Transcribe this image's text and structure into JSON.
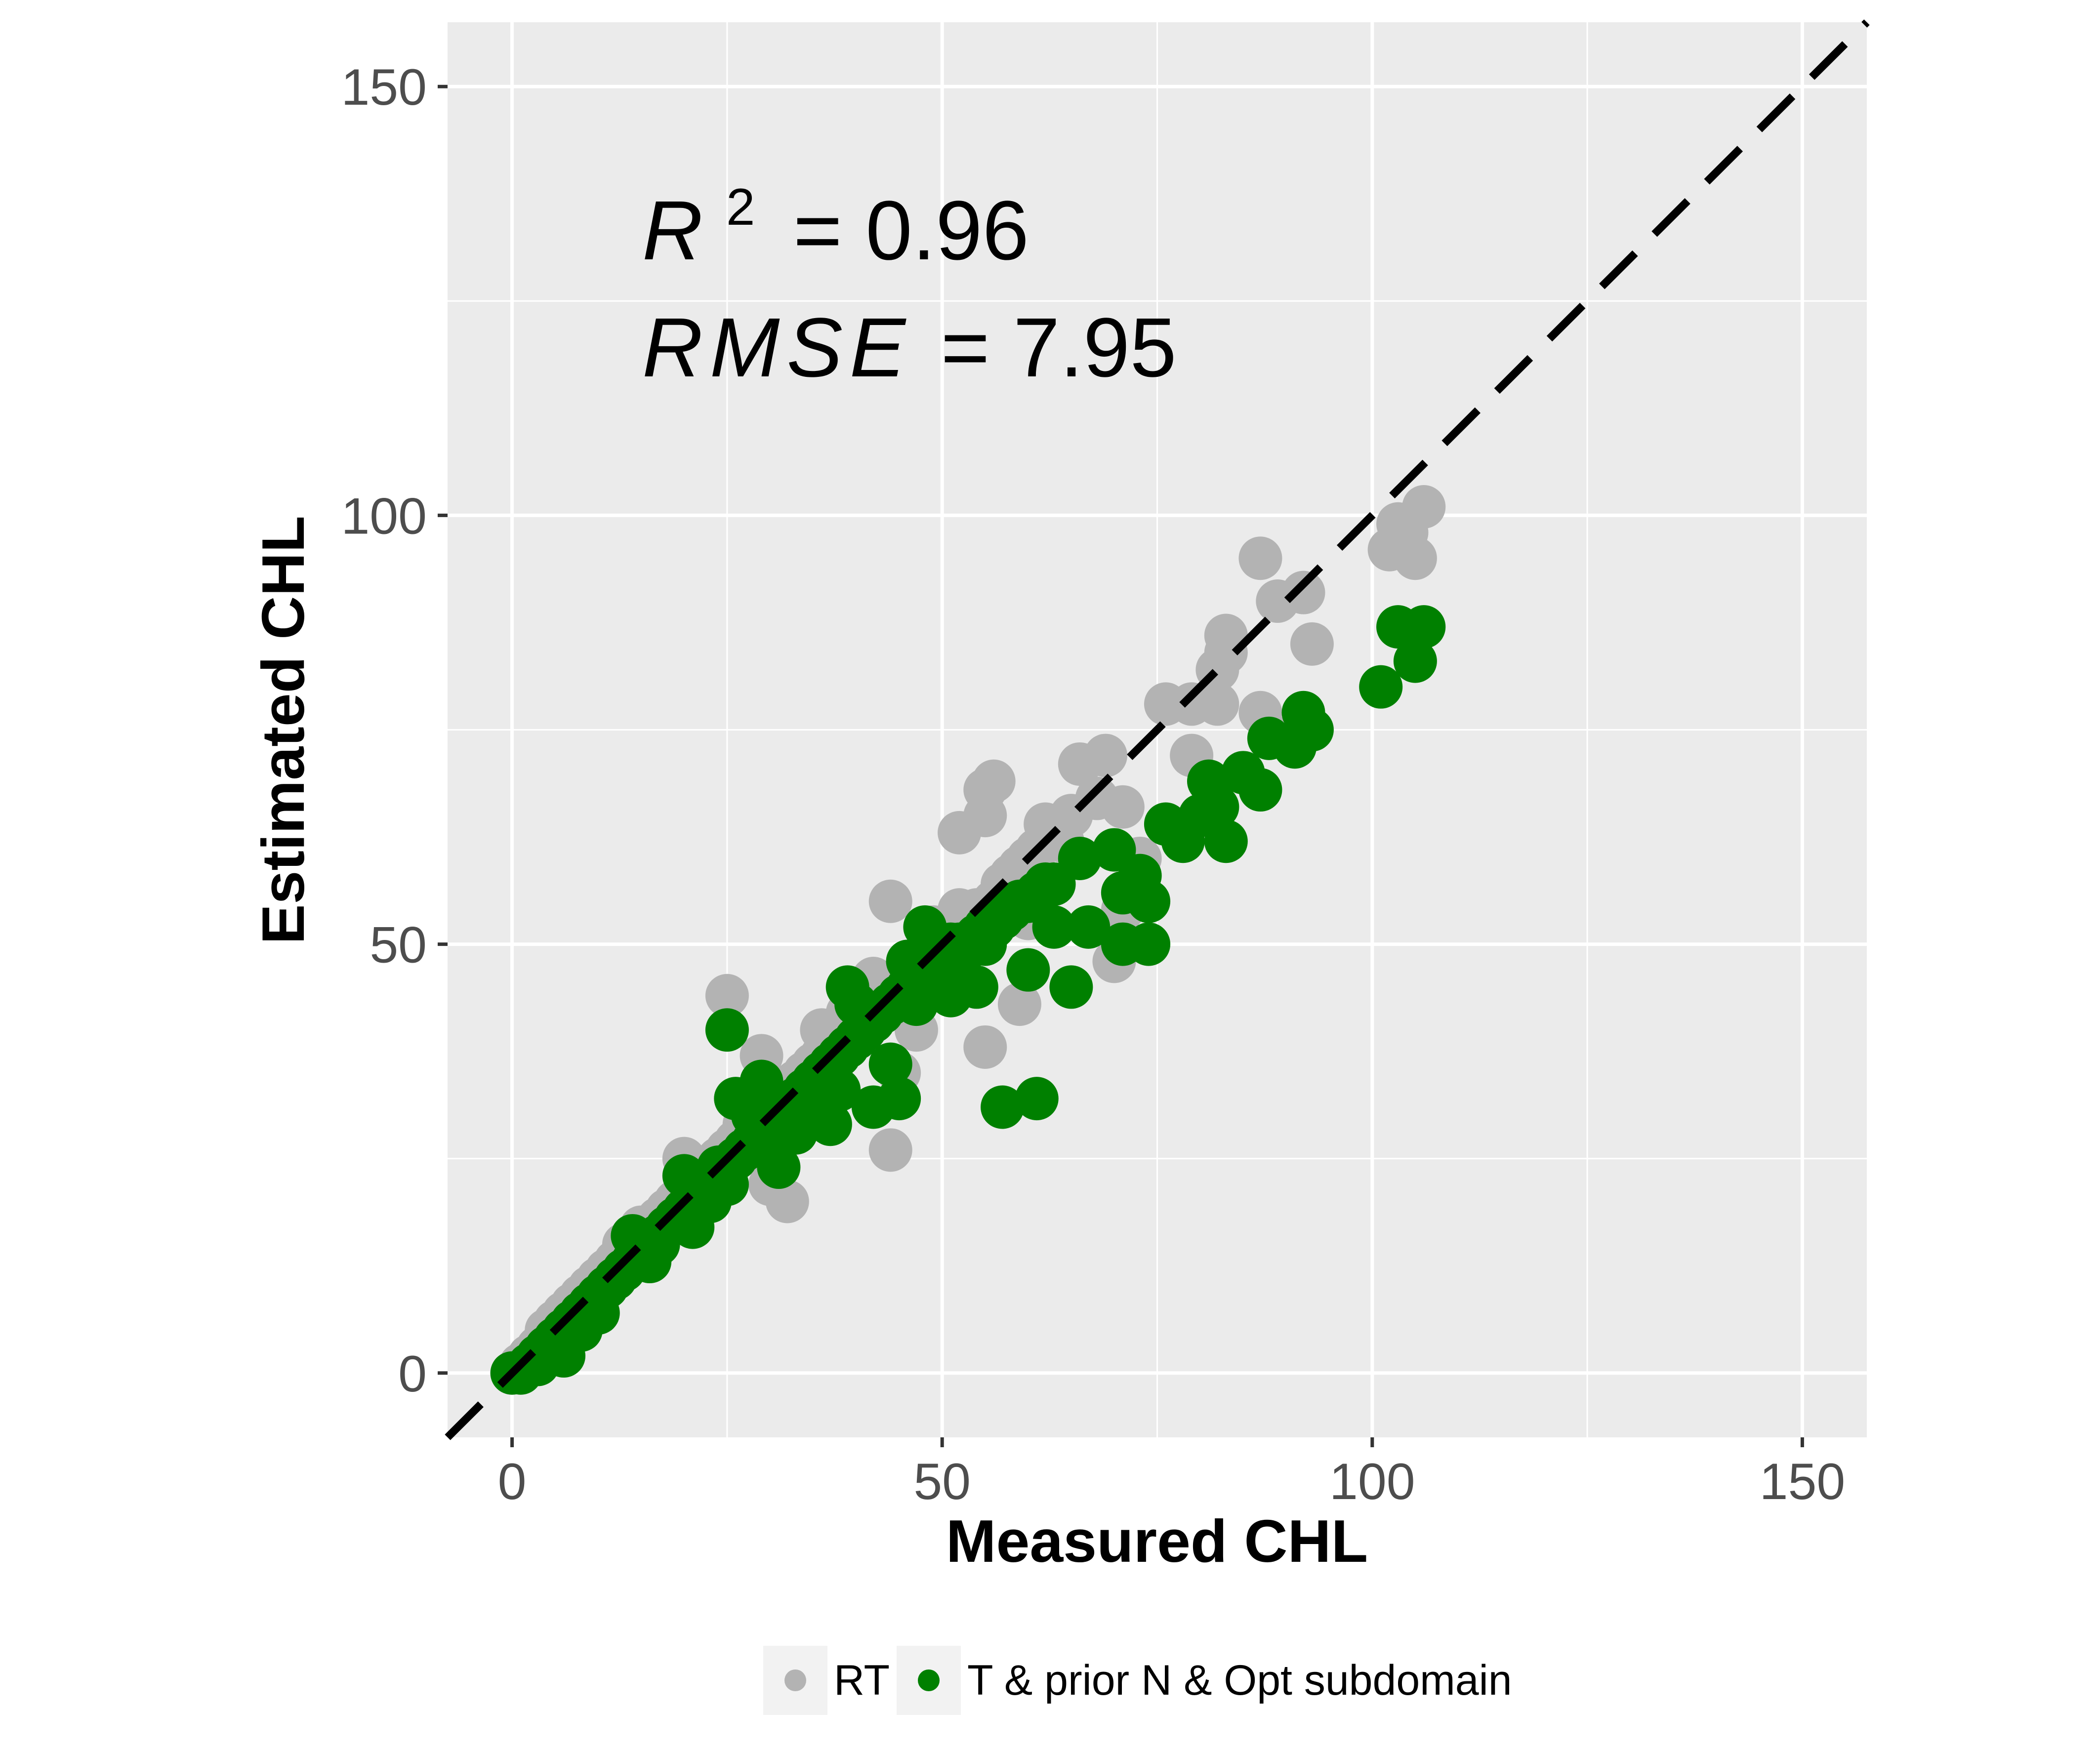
{
  "chart_data": {
    "type": "scatter",
    "title": "",
    "xlabel": "Measured CHL",
    "ylabel": "Estimated CHL",
    "xlim": [
      -7.5,
      157.5
    ],
    "ylim": [
      -7.5,
      157.5
    ],
    "x_ticks": [
      0,
      50,
      100,
      150
    ],
    "y_ticks": [
      0,
      50,
      100,
      150
    ],
    "x_tick_labels": [
      "0",
      "50",
      "100",
      "150"
    ],
    "y_tick_labels": [
      "0",
      "50",
      "100",
      "150"
    ],
    "grid": true,
    "background": "#ebebeb",
    "reference_line": {
      "type": "1:1",
      "style": "dashed",
      "color": "#000000"
    },
    "annotations": {
      "r2_symbol": "R",
      "r2_exponent": "2",
      "r2_value": "= 0.96",
      "rmse_symbol": "RMSE",
      "rmse_value": "= 7.95"
    },
    "legend": {
      "position": "bottom",
      "entries": [
        {
          "label": "RT",
          "color": "#b3b3b3"
        },
        {
          "label": "T & prior N & Opt subdomain",
          "color": "#008000"
        }
      ]
    },
    "series": [
      {
        "name": "RT",
        "color": "#b3b3b3",
        "points": [
          [
            0,
            0
          ],
          [
            1,
            1
          ],
          [
            2,
            2
          ],
          [
            3,
            3
          ],
          [
            4,
            5
          ],
          [
            5,
            6
          ],
          [
            6,
            7
          ],
          [
            7,
            8
          ],
          [
            8,
            9
          ],
          [
            9,
            10
          ],
          [
            10,
            11
          ],
          [
            11,
            12
          ],
          [
            12,
            13
          ],
          [
            13,
            15
          ],
          [
            14,
            16
          ],
          [
            15,
            17
          ],
          [
            16,
            17
          ],
          [
            17,
            18
          ],
          [
            18,
            19
          ],
          [
            19,
            20
          ],
          [
            20,
            21
          ],
          [
            21,
            22
          ],
          [
            22,
            23
          ],
          [
            23,
            24
          ],
          [
            24,
            25
          ],
          [
            25,
            26
          ],
          [
            26,
            27
          ],
          [
            27,
            29
          ],
          [
            28,
            30
          ],
          [
            29,
            31
          ],
          [
            30,
            32
          ],
          [
            31,
            32
          ],
          [
            32,
            33
          ],
          [
            33,
            34
          ],
          [
            34,
            35
          ],
          [
            35,
            36
          ],
          [
            36,
            37
          ],
          [
            37,
            38
          ],
          [
            38,
            40
          ],
          [
            39,
            41
          ],
          [
            40,
            41
          ],
          [
            41,
            42
          ],
          [
            42,
            43
          ],
          [
            43,
            44
          ],
          [
            44,
            45
          ],
          [
            45,
            46
          ],
          [
            46,
            47
          ],
          [
            47,
            48
          ],
          [
            48,
            49
          ],
          [
            49,
            50
          ],
          [
            50,
            51
          ],
          [
            52,
            52
          ],
          [
            53,
            53
          ],
          [
            54,
            54
          ],
          [
            56,
            55
          ],
          [
            57,
            57
          ],
          [
            58,
            58
          ],
          [
            59,
            59
          ],
          [
            60,
            60
          ],
          [
            61,
            61
          ],
          [
            62,
            62
          ],
          [
            63,
            63
          ],
          [
            64,
            64
          ],
          [
            65,
            65
          ],
          [
            20,
            25
          ],
          [
            25,
            44
          ],
          [
            29,
            37
          ],
          [
            30,
            22
          ],
          [
            32,
            20
          ],
          [
            35,
            30
          ],
          [
            36,
            40
          ],
          [
            39,
            42
          ],
          [
            42,
            46
          ],
          [
            44,
            55
          ],
          [
            44,
            26
          ],
          [
            45,
            35
          ],
          [
            47,
            40
          ],
          [
            49,
            52
          ],
          [
            50,
            48
          ],
          [
            52,
            54
          ],
          [
            55,
            65
          ],
          [
            56,
            69
          ],
          [
            55,
            68
          ],
          [
            52,
            63
          ],
          [
            55,
            38
          ],
          [
            59,
            43
          ],
          [
            60,
            53
          ],
          [
            62,
            64
          ],
          [
            64,
            62
          ],
          [
            66,
            71
          ],
          [
            68,
            67
          ],
          [
            69,
            72
          ],
          [
            71,
            66
          ],
          [
            71,
            54
          ],
          [
            73,
            60
          ],
          [
            70,
            48
          ],
          [
            76,
            78
          ],
          [
            79,
            78
          ],
          [
            79,
            72
          ],
          [
            82,
            82
          ],
          [
            83,
            86
          ],
          [
            82,
            78
          ],
          [
            83,
            84
          ],
          [
            87,
            95
          ],
          [
            89,
            90
          ],
          [
            92,
            91
          ],
          [
            93,
            85
          ],
          [
            87,
            77
          ],
          [
            90,
            74
          ],
          [
            102,
            96
          ],
          [
            103,
            99
          ],
          [
            104,
            98
          ],
          [
            105,
            95
          ],
          [
            106,
            101
          ]
        ]
      },
      {
        "name": "T & prior N & Opt subdomain",
        "color": "#008000",
        "points": [
          [
            0,
            0
          ],
          [
            1,
            0
          ],
          [
            2,
            1
          ],
          [
            3,
            2
          ],
          [
            4,
            3
          ],
          [
            5,
            4
          ],
          [
            6,
            5
          ],
          [
            7,
            6
          ],
          [
            8,
            7
          ],
          [
            9,
            8
          ],
          [
            10,
            9
          ],
          [
            11,
            10
          ],
          [
            12,
            11
          ],
          [
            13,
            12
          ],
          [
            14,
            13
          ],
          [
            15,
            14
          ],
          [
            16,
            15
          ],
          [
            17,
            16
          ],
          [
            18,
            17
          ],
          [
            19,
            18
          ],
          [
            20,
            19
          ],
          [
            21,
            20
          ],
          [
            22,
            21
          ],
          [
            23,
            22
          ],
          [
            24,
            23
          ],
          [
            25,
            24
          ],
          [
            26,
            25
          ],
          [
            27,
            26
          ],
          [
            28,
            27
          ],
          [
            29,
            28
          ],
          [
            30,
            29
          ],
          [
            31,
            30
          ],
          [
            32,
            31
          ],
          [
            33,
            32
          ],
          [
            34,
            33
          ],
          [
            35,
            34
          ],
          [
            36,
            35
          ],
          [
            37,
            36
          ],
          [
            38,
            37
          ],
          [
            39,
            38
          ],
          [
            40,
            39
          ],
          [
            41,
            40
          ],
          [
            42,
            41
          ],
          [
            43,
            42
          ],
          [
            44,
            43
          ],
          [
            45,
            44
          ],
          [
            46,
            45
          ],
          [
            47,
            46
          ],
          [
            48,
            47
          ],
          [
            49,
            48
          ],
          [
            50,
            49
          ],
          [
            51,
            50
          ],
          [
            52,
            50
          ],
          [
            53,
            50
          ],
          [
            54,
            51
          ],
          [
            55,
            52
          ],
          [
            56,
            52
          ],
          [
            57,
            53
          ],
          [
            58,
            54
          ],
          [
            59,
            55
          ],
          [
            60,
            55
          ],
          [
            61,
            56
          ],
          [
            62,
            57
          ],
          [
            63,
            57
          ],
          [
            3,
            1
          ],
          [
            6,
            2
          ],
          [
            8,
            5
          ],
          [
            10,
            7
          ],
          [
            13,
            12
          ],
          [
            14,
            16
          ],
          [
            16,
            13
          ],
          [
            17,
            15
          ],
          [
            20,
            23
          ],
          [
            21,
            17
          ],
          [
            23,
            20
          ],
          [
            24,
            24
          ],
          [
            25,
            22
          ],
          [
            25,
            40
          ],
          [
            26,
            32
          ],
          [
            28,
            30
          ],
          [
            29,
            34
          ],
          [
            30,
            26
          ],
          [
            31,
            24
          ],
          [
            33,
            28
          ],
          [
            35,
            34
          ],
          [
            36,
            30
          ],
          [
            37,
            29
          ],
          [
            38,
            33
          ],
          [
            39,
            45
          ],
          [
            40,
            43
          ],
          [
            42,
            31
          ],
          [
            44,
            36
          ],
          [
            45,
            32
          ],
          [
            46,
            48
          ],
          [
            47,
            43
          ],
          [
            48,
            52
          ],
          [
            50,
            46
          ],
          [
            51,
            44
          ],
          [
            52,
            48
          ],
          [
            54,
            45
          ],
          [
            55,
            50
          ],
          [
            56,
            53
          ],
          [
            57,
            31
          ],
          [
            61,
            32
          ],
          [
            60,
            47
          ],
          [
            63,
            52
          ],
          [
            65,
            45
          ],
          [
            66,
            60
          ],
          [
            67,
            52
          ],
          [
            70,
            61
          ],
          [
            71,
            56
          ],
          [
            73,
            58
          ],
          [
            74,
            55
          ],
          [
            71,
            50
          ],
          [
            74,
            50
          ],
          [
            76,
            64
          ],
          [
            78,
            62
          ],
          [
            80,
            65
          ],
          [
            81,
            69
          ],
          [
            83,
            62
          ],
          [
            82,
            66
          ],
          [
            85,
            70
          ],
          [
            87,
            68
          ],
          [
            88,
            74
          ],
          [
            91,
            73
          ],
          [
            92,
            77
          ],
          [
            93,
            75
          ],
          [
            101,
            80
          ],
          [
            103,
            87
          ],
          [
            105,
            83
          ],
          [
            106,
            87
          ]
        ]
      }
    ]
  }
}
